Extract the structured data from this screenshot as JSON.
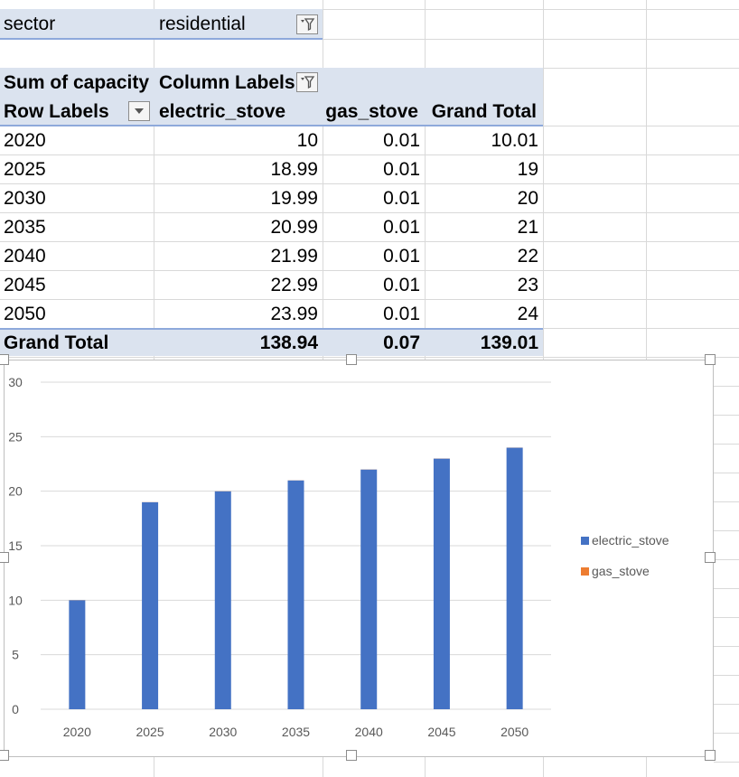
{
  "filter": {
    "label": "sector",
    "value": "residential"
  },
  "pivot": {
    "value_field": "Sum of capacity",
    "column_labels": "Column Labels",
    "row_labels": "Row Labels",
    "columns": [
      "electric_stove",
      "gas_stove",
      "Grand Total"
    ],
    "rows": [
      {
        "label": "2020",
        "electric_stove": "10",
        "gas_stove": "0.01",
        "grand_total": "10.01"
      },
      {
        "label": "2025",
        "electric_stove": "18.99",
        "gas_stove": "0.01",
        "grand_total": "19"
      },
      {
        "label": "2030",
        "electric_stove": "19.99",
        "gas_stove": "0.01",
        "grand_total": "20"
      },
      {
        "label": "2035",
        "electric_stove": "20.99",
        "gas_stove": "0.01",
        "grand_total": "21"
      },
      {
        "label": "2040",
        "electric_stove": "21.99",
        "gas_stove": "0.01",
        "grand_total": "22"
      },
      {
        "label": "2045",
        "electric_stove": "22.99",
        "gas_stove": "0.01",
        "grand_total": "23"
      },
      {
        "label": "2050",
        "electric_stove": "23.99",
        "gas_stove": "0.01",
        "grand_total": "24"
      }
    ],
    "grand_total": {
      "label": "Grand Total",
      "electric_stove": "138.94",
      "gas_stove": "0.07",
      "grand_total": "139.01"
    }
  },
  "colors": {
    "electric_stove": "#4472c4",
    "gas_stove": "#ed7d31",
    "pivot_band": "#dbe3ef",
    "gridline": "#d9d9d9"
  },
  "chart_data": {
    "type": "bar",
    "categories": [
      "2020",
      "2025",
      "2030",
      "2035",
      "2040",
      "2045",
      "2050"
    ],
    "series": [
      {
        "name": "electric_stove",
        "values": [
          10,
          18.99,
          19.99,
          20.99,
          21.99,
          22.99,
          23.99
        ]
      },
      {
        "name": "gas_stove",
        "values": [
          0.01,
          0.01,
          0.01,
          0.01,
          0.01,
          0.01,
          0.01
        ]
      }
    ],
    "yticks": [
      "0",
      "5",
      "10",
      "15",
      "20",
      "25",
      "30"
    ],
    "ylim": [
      0,
      30
    ],
    "grid": true,
    "legend": "right",
    "stacked": true
  }
}
